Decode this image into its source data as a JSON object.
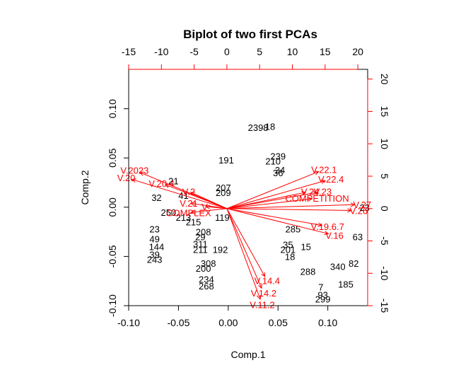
{
  "chart_data": {
    "type": "scatter",
    "title": "Biplot of two first PCAs",
    "xlabel": "Comp.1",
    "ylabel": "Comp.2",
    "xlim": [
      -0.1,
      0.14
    ],
    "ylim": [
      -0.1,
      0.14
    ],
    "xticks": [
      "-0.10",
      "-0.05",
      "0.00",
      "0.05",
      "0.10"
    ],
    "yticks": [
      "-0.10",
      "-0.05",
      "0.00",
      "0.05",
      "0.10"
    ],
    "top_axis": {
      "lim": [
        -15,
        21.5
      ],
      "ticks": [
        "-15",
        "-10",
        "-5",
        "0",
        "5",
        "10",
        "15",
        "20"
      ]
    },
    "right_axis": {
      "lim": [
        -15,
        21.5
      ],
      "ticks": [
        "-15",
        "-10",
        "-5",
        "0",
        "5",
        "10",
        "15",
        "20"
      ]
    },
    "arrow_color": "#ff0000",
    "point_color": "#000000",
    "observations": [
      {
        "label": "2398",
        "x": 0.03,
        "y": 0.081
      },
      {
        "label": "18",
        "x": 0.042,
        "y": 0.082
      },
      {
        "label": "191",
        "x": -0.002,
        "y": 0.048
      },
      {
        "label": "210",
        "x": 0.045,
        "y": 0.047
      },
      {
        "label": "239",
        "x": 0.05,
        "y": 0.052
      },
      {
        "label": "34",
        "x": 0.052,
        "y": 0.038
      },
      {
        "label": "36",
        "x": 0.05,
        "y": 0.035
      },
      {
        "label": "207",
        "x": -0.005,
        "y": 0.02
      },
      {
        "label": "209",
        "x": -0.005,
        "y": 0.015
      },
      {
        "label": "21",
        "x": -0.055,
        "y": 0.027
      },
      {
        "label": "32",
        "x": -0.072,
        "y": 0.01
      },
      {
        "label": "41",
        "x": -0.045,
        "y": 0.012
      },
      {
        "label": "250",
        "x": -0.06,
        "y": -0.005
      },
      {
        "label": "213",
        "x": -0.045,
        "y": -0.01
      },
      {
        "label": "215",
        "x": -0.035,
        "y": -0.015
      },
      {
        "label": "208",
        "x": -0.025,
        "y": -0.025
      },
      {
        "label": "23",
        "x": -0.074,
        "y": -0.022
      },
      {
        "label": "49",
        "x": -0.074,
        "y": -0.032
      },
      {
        "label": "144",
        "x": -0.072,
        "y": -0.04
      },
      {
        "label": "39",
        "x": -0.074,
        "y": -0.048
      },
      {
        "label": "243",
        "x": -0.074,
        "y": -0.053
      },
      {
        "label": "29",
        "x": -0.028,
        "y": -0.03
      },
      {
        "label": "311",
        "x": -0.028,
        "y": -0.037
      },
      {
        "label": "211",
        "x": -0.028,
        "y": -0.043
      },
      {
        "label": "192",
        "x": -0.008,
        "y": -0.043
      },
      {
        "label": "119",
        "x": -0.006,
        "y": -0.01
      },
      {
        "label": "308",
        "x": -0.02,
        "y": -0.057
      },
      {
        "label": "200",
        "x": -0.025,
        "y": -0.062
      },
      {
        "label": "234",
        "x": -0.022,
        "y": -0.073
      },
      {
        "label": "268",
        "x": -0.022,
        "y": -0.08
      },
      {
        "label": "285",
        "x": 0.065,
        "y": -0.022
      },
      {
        "label": "35",
        "x": 0.06,
        "y": -0.038
      },
      {
        "label": "201",
        "x": 0.06,
        "y": -0.043
      },
      {
        "label": "18",
        "x": 0.062,
        "y": -0.05
      },
      {
        "label": "15",
        "x": 0.078,
        "y": -0.04
      },
      {
        "label": "288",
        "x": 0.08,
        "y": -0.065
      },
      {
        "label": "340",
        "x": 0.11,
        "y": -0.06
      },
      {
        "label": "82",
        "x": 0.126,
        "y": -0.057
      },
      {
        "label": "7",
        "x": 0.093,
        "y": -0.081
      },
      {
        "label": "185",
        "x": 0.118,
        "y": -0.078
      },
      {
        "label": "93",
        "x": 0.095,
        "y": -0.089
      },
      {
        "label": "299",
        "x": 0.095,
        "y": -0.093
      },
      {
        "label": "63",
        "x": 0.13,
        "y": -0.03
      },
      {
        "label": "23",
        "x": 0.137,
        "y": 0.0
      }
    ],
    "variables": [
      {
        "label": "V.2023",
        "x": -13.3,
        "y": 5.6
      },
      {
        "label": "V.20",
        "x": -14.5,
        "y": 4.5
      },
      {
        "label": "V.20.4",
        "x": -9.4,
        "y": 3.7
      },
      {
        "label": "V.2",
        "x": -5.5,
        "y": 2.5
      },
      {
        "label": "COMPLEX",
        "x": -5.5,
        "y": -0.6
      },
      {
        "label": "V",
        "x": -3.2,
        "y": 0.3
      },
      {
        "label": "V.21",
        "x": -5.5,
        "y": 0.8
      },
      {
        "label": "V.22.1",
        "x": 14.0,
        "y": 5.7
      },
      {
        "label": "V.22.4",
        "x": 15.0,
        "y": 4.3
      },
      {
        "label": "V.23",
        "x": 13.8,
        "y": 2.5
      },
      {
        "label": "V.24",
        "x": 12.0,
        "y": 2.5
      },
      {
        "label": "COMPETITION",
        "x": 13.0,
        "y": 1.5
      },
      {
        "label": "V.27",
        "x": 19.5,
        "y": 0.6
      },
      {
        "label": "V.26",
        "x": 19.0,
        "y": -0.3
      },
      {
        "label": "V.19.6.7",
        "x": 14.5,
        "y": -2.6
      },
      {
        "label": "V.16",
        "x": 15.5,
        "y": -3.9
      },
      {
        "label": "V.14.4",
        "x": 5.8,
        "y": -10.5
      },
      {
        "label": "V.14.2",
        "x": 5.3,
        "y": -12.3
      },
      {
        "label": "V.11.2",
        "x": 5.1,
        "y": -14.0
      }
    ]
  }
}
